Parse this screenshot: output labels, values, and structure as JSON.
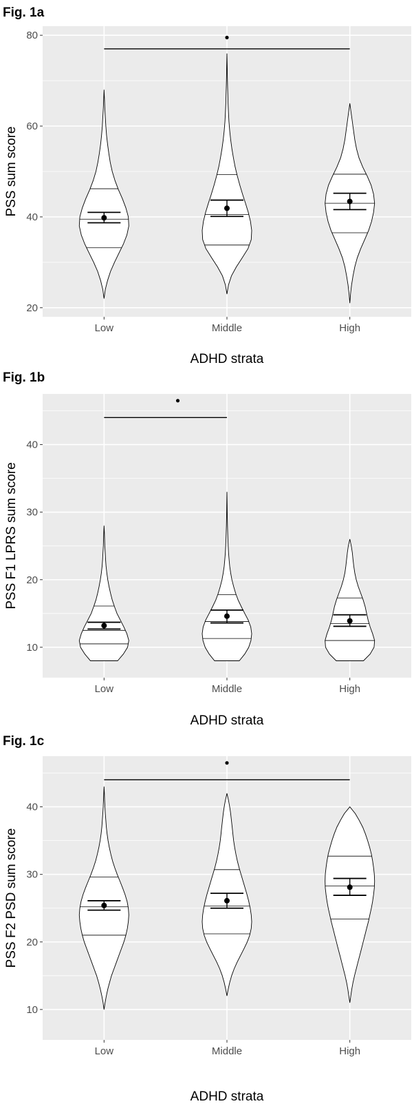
{
  "chart_data": [
    {
      "type": "violin",
      "figure_label": "Fig. 1a",
      "xlabel": "ADHD strata",
      "ylabel": "PSS sum score",
      "categories": [
        "Low",
        "Middle",
        "High"
      ],
      "ylim": [
        18,
        82
      ],
      "yticks": [
        20,
        40,
        60,
        80
      ],
      "grid": true,
      "violins": [
        {
          "min": 22,
          "max": 68,
          "q1": 33.2,
          "median": 39.5,
          "q3": 46.2,
          "mean": 39.8,
          "ci": [
            38.7,
            41.0
          ],
          "profile": [
            [
              22,
              0.0
            ],
            [
              24,
              0.05
            ],
            [
              26,
              0.14
            ],
            [
              28,
              0.26
            ],
            [
              30,
              0.42
            ],
            [
              32,
              0.6
            ],
            [
              34,
              0.78
            ],
            [
              36,
              0.92
            ],
            [
              38,
              1.0
            ],
            [
              40,
              0.98
            ],
            [
              42,
              0.88
            ],
            [
              44,
              0.74
            ],
            [
              46,
              0.58
            ],
            [
              48,
              0.44
            ],
            [
              50,
              0.33
            ],
            [
              52,
              0.25
            ],
            [
              54,
              0.19
            ],
            [
              56,
              0.14
            ],
            [
              58,
              0.1
            ],
            [
              60,
              0.07
            ],
            [
              62,
              0.05
            ],
            [
              64,
              0.03
            ],
            [
              66,
              0.015
            ],
            [
              68,
              0.0
            ]
          ]
        },
        {
          "min": 23,
          "max": 76,
          "q1": 33.8,
          "median": 40.5,
          "q3": 49.3,
          "mean": 41.9,
          "ci": [
            40.1,
            43.7
          ],
          "profile": [
            [
              23,
              0.0
            ],
            [
              25,
              0.06
            ],
            [
              27,
              0.18
            ],
            [
              29,
              0.38
            ],
            [
              31,
              0.62
            ],
            [
              33,
              0.85
            ],
            [
              35,
              0.98
            ],
            [
              37,
              1.0
            ],
            [
              39,
              0.95
            ],
            [
              41,
              0.86
            ],
            [
              43,
              0.75
            ],
            [
              45,
              0.63
            ],
            [
              47,
              0.52
            ],
            [
              49,
              0.42
            ],
            [
              51,
              0.33
            ],
            [
              53,
              0.26
            ],
            [
              55,
              0.2
            ],
            [
              57,
              0.15
            ],
            [
              59,
              0.11
            ],
            [
              61,
              0.08
            ],
            [
              63,
              0.06
            ],
            [
              65,
              0.045
            ],
            [
              67,
              0.035
            ],
            [
              69,
              0.025
            ],
            [
              71,
              0.017
            ],
            [
              73,
              0.01
            ],
            [
              76,
              0.0
            ]
          ]
        },
        {
          "min": 21,
          "max": 65,
          "q1": 36.5,
          "median": 43.0,
          "q3": 49.4,
          "mean": 43.4,
          "ci": [
            41.6,
            45.2
          ],
          "profile": [
            [
              21,
              0.0
            ],
            [
              23,
              0.03
            ],
            [
              25,
              0.07
            ],
            [
              27,
              0.13
            ],
            [
              29,
              0.2
            ],
            [
              31,
              0.3
            ],
            [
              33,
              0.44
            ],
            [
              35,
              0.6
            ],
            [
              37,
              0.76
            ],
            [
              39,
              0.88
            ],
            [
              41,
              0.96
            ],
            [
              43,
              1.0
            ],
            [
              45,
              0.96
            ],
            [
              47,
              0.86
            ],
            [
              49,
              0.7
            ],
            [
              51,
              0.52
            ],
            [
              53,
              0.37
            ],
            [
              55,
              0.27
            ],
            [
              57,
              0.2
            ],
            [
              59,
              0.15
            ],
            [
              61,
              0.1
            ],
            [
              63,
              0.05
            ],
            [
              65,
              0.0
            ]
          ]
        }
      ],
      "significance": {
        "from": "Low",
        "to": "High",
        "y": 77,
        "marker": "*",
        "marker_x": "Middle",
        "marker_y": 79.5
      }
    },
    {
      "type": "violin",
      "figure_label": "Fig. 1b",
      "xlabel": "ADHD strata",
      "ylabel": "PSS F1 LPRS sum score",
      "categories": [
        "Low",
        "Middle",
        "High"
      ],
      "ylim": [
        5.5,
        47.5
      ],
      "yticks": [
        10,
        20,
        30,
        40
      ],
      "grid": true,
      "violins": [
        {
          "min": 8,
          "max": 28,
          "q1": 10.5,
          "median": 12.5,
          "q3": 16.1,
          "mean": 13.2,
          "ci": [
            12.7,
            13.7
          ],
          "profile": [
            [
              8,
              0.55
            ],
            [
              9,
              0.78
            ],
            [
              10,
              0.95
            ],
            [
              11,
              1.0
            ],
            [
              12,
              0.92
            ],
            [
              13,
              0.8
            ],
            [
              14,
              0.66
            ],
            [
              15,
              0.52
            ],
            [
              16,
              0.42
            ],
            [
              17,
              0.33
            ],
            [
              18,
              0.26
            ],
            [
              19,
              0.2
            ],
            [
              20,
              0.15
            ],
            [
              21,
              0.11
            ],
            [
              22,
              0.08
            ],
            [
              23,
              0.06
            ],
            [
              24,
              0.045
            ],
            [
              25,
              0.03
            ],
            [
              26,
              0.02
            ],
            [
              27,
              0.012
            ],
            [
              28,
              0.0
            ]
          ]
        },
        {
          "min": 8,
          "max": 33,
          "q1": 11.3,
          "median": 13.8,
          "q3": 17.8,
          "mean": 14.6,
          "ci": [
            13.6,
            15.5
          ],
          "profile": [
            [
              8,
              0.5
            ],
            [
              9,
              0.72
            ],
            [
              10,
              0.88
            ],
            [
              11,
              0.97
            ],
            [
              12,
              1.0
            ],
            [
              13,
              0.96
            ],
            [
              14,
              0.86
            ],
            [
              15,
              0.72
            ],
            [
              16,
              0.58
            ],
            [
              17,
              0.45
            ],
            [
              18,
              0.35
            ],
            [
              19,
              0.27
            ],
            [
              20,
              0.2
            ],
            [
              21,
              0.15
            ],
            [
              22,
              0.11
            ],
            [
              23,
              0.085
            ],
            [
              24,
              0.065
            ],
            [
              25,
              0.05
            ],
            [
              26,
              0.04
            ],
            [
              27,
              0.03
            ],
            [
              28,
              0.022
            ],
            [
              29,
              0.016
            ],
            [
              30,
              0.011
            ],
            [
              31,
              0.007
            ],
            [
              33,
              0.0
            ]
          ]
        },
        {
          "min": 8,
          "max": 26,
          "q1": 11.0,
          "median": 13.5,
          "q3": 17.3,
          "mean": 13.9,
          "ci": [
            13.1,
            14.8
          ],
          "profile": [
            [
              8,
              0.55
            ],
            [
              9,
              0.82
            ],
            [
              10,
              0.98
            ],
            [
              11,
              1.0
            ],
            [
              12,
              0.92
            ],
            [
              13,
              0.82
            ],
            [
              14,
              0.74
            ],
            [
              15,
              0.68
            ],
            [
              16,
              0.62
            ],
            [
              17,
              0.54
            ],
            [
              18,
              0.44
            ],
            [
              19,
              0.34
            ],
            [
              20,
              0.26
            ],
            [
              21,
              0.2
            ],
            [
              22,
              0.16
            ],
            [
              23,
              0.13
            ],
            [
              24,
              0.1
            ],
            [
              25,
              0.06
            ],
            [
              26,
              0.0
            ]
          ]
        }
      ],
      "significance": {
        "from": "Low",
        "to": "Middle",
        "y": 44,
        "marker": "*",
        "marker_x_data": 1.6,
        "marker_y": 46.5
      }
    },
    {
      "type": "violin",
      "figure_label": "Fig. 1c",
      "xlabel": "ADHD strata",
      "ylabel": "PSS F2 PSD sum score",
      "categories": [
        "Low",
        "Middle",
        "High"
      ],
      "ylim": [
        5.5,
        47.5
      ],
      "yticks": [
        10,
        20,
        30,
        40
      ],
      "grid": true,
      "violins": [
        {
          "min": 10,
          "max": 43,
          "q1": 21.0,
          "median": 25.2,
          "q3": 29.6,
          "mean": 25.4,
          "ci": [
            24.7,
            26.1
          ],
          "profile": [
            [
              10,
              0.0
            ],
            [
              11,
              0.04
            ],
            [
              12,
              0.09
            ],
            [
              13,
              0.15
            ],
            [
              14,
              0.22
            ],
            [
              15,
              0.3
            ],
            [
              16,
              0.4
            ],
            [
              17,
              0.5
            ],
            [
              18,
              0.6
            ],
            [
              19,
              0.7
            ],
            [
              20,
              0.8
            ],
            [
              21,
              0.88
            ],
            [
              22,
              0.94
            ],
            [
              23,
              0.98
            ],
            [
              24,
              1.0
            ],
            [
              25,
              0.98
            ],
            [
              26,
              0.93
            ],
            [
              27,
              0.85
            ],
            [
              28,
              0.75
            ],
            [
              29,
              0.64
            ],
            [
              30,
              0.53
            ],
            [
              31,
              0.43
            ],
            [
              32,
              0.34
            ],
            [
              33,
              0.27
            ],
            [
              34,
              0.21
            ],
            [
              35,
              0.16
            ],
            [
              36,
              0.12
            ],
            [
              37,
              0.09
            ],
            [
              38,
              0.07
            ],
            [
              39,
              0.05
            ],
            [
              40,
              0.035
            ],
            [
              41,
              0.022
            ],
            [
              42,
              0.012
            ],
            [
              43,
              0.0
            ]
          ]
        },
        {
          "min": 12,
          "max": 42,
          "q1": 21.2,
          "median": 25.3,
          "q3": 30.7,
          "mean": 26.1,
          "ci": [
            25.0,
            27.2
          ],
          "profile": [
            [
              12,
              0.0
            ],
            [
              13,
              0.05
            ],
            [
              14,
              0.11
            ],
            [
              15,
              0.19
            ],
            [
              16,
              0.29
            ],
            [
              17,
              0.41
            ],
            [
              18,
              0.55
            ],
            [
              19,
              0.69
            ],
            [
              20,
              0.82
            ],
            [
              21,
              0.92
            ],
            [
              22,
              0.98
            ],
            [
              23,
              1.0
            ],
            [
              24,
              0.98
            ],
            [
              25,
              0.94
            ],
            [
              26,
              0.88
            ],
            [
              27,
              0.81
            ],
            [
              28,
              0.73
            ],
            [
              29,
              0.65
            ],
            [
              30,
              0.57
            ],
            [
              31,
              0.49
            ],
            [
              32,
              0.42
            ],
            [
              33,
              0.36
            ],
            [
              34,
              0.31
            ],
            [
              35,
              0.27
            ],
            [
              36,
              0.24
            ],
            [
              37,
              0.21
            ],
            [
              38,
              0.18
            ],
            [
              39,
              0.15
            ],
            [
              40,
              0.11
            ],
            [
              41,
              0.06
            ],
            [
              42,
              0.0
            ]
          ]
        },
        {
          "min": 11,
          "max": 40,
          "q1": 23.4,
          "median": 28.3,
          "q3": 32.7,
          "mean": 28.1,
          "ci": [
            26.9,
            29.4
          ],
          "profile": [
            [
              11,
              0.0
            ],
            [
              12,
              0.04
            ],
            [
              13,
              0.08
            ],
            [
              14,
              0.13
            ],
            [
              15,
              0.19
            ],
            [
              16,
              0.26
            ],
            [
              17,
              0.33
            ],
            [
              18,
              0.4
            ],
            [
              19,
              0.47
            ],
            [
              20,
              0.54
            ],
            [
              21,
              0.61
            ],
            [
              22,
              0.68
            ],
            [
              23,
              0.75
            ],
            [
              24,
              0.81
            ],
            [
              25,
              0.87
            ],
            [
              26,
              0.92
            ],
            [
              27,
              0.96
            ],
            [
              28,
              0.99
            ],
            [
              29,
              1.0
            ],
            [
              30,
              0.99
            ],
            [
              31,
              0.96
            ],
            [
              32,
              0.92
            ],
            [
              33,
              0.87
            ],
            [
              34,
              0.8
            ],
            [
              35,
              0.72
            ],
            [
              36,
              0.63
            ],
            [
              37,
              0.52
            ],
            [
              38,
              0.38
            ],
            [
              39,
              0.22
            ],
            [
              40,
              0.0
            ]
          ]
        }
      ],
      "significance": {
        "from": "Low",
        "to": "High",
        "y": 44,
        "marker": "*",
        "marker_x": "Middle",
        "marker_y": 46.5
      }
    }
  ],
  "colors": {
    "panel_background": "#ebebeb",
    "grid": "#ffffff",
    "violin_fill": "#ffffff",
    "stroke": "#000000",
    "tick_text": "#4d4d4d"
  }
}
